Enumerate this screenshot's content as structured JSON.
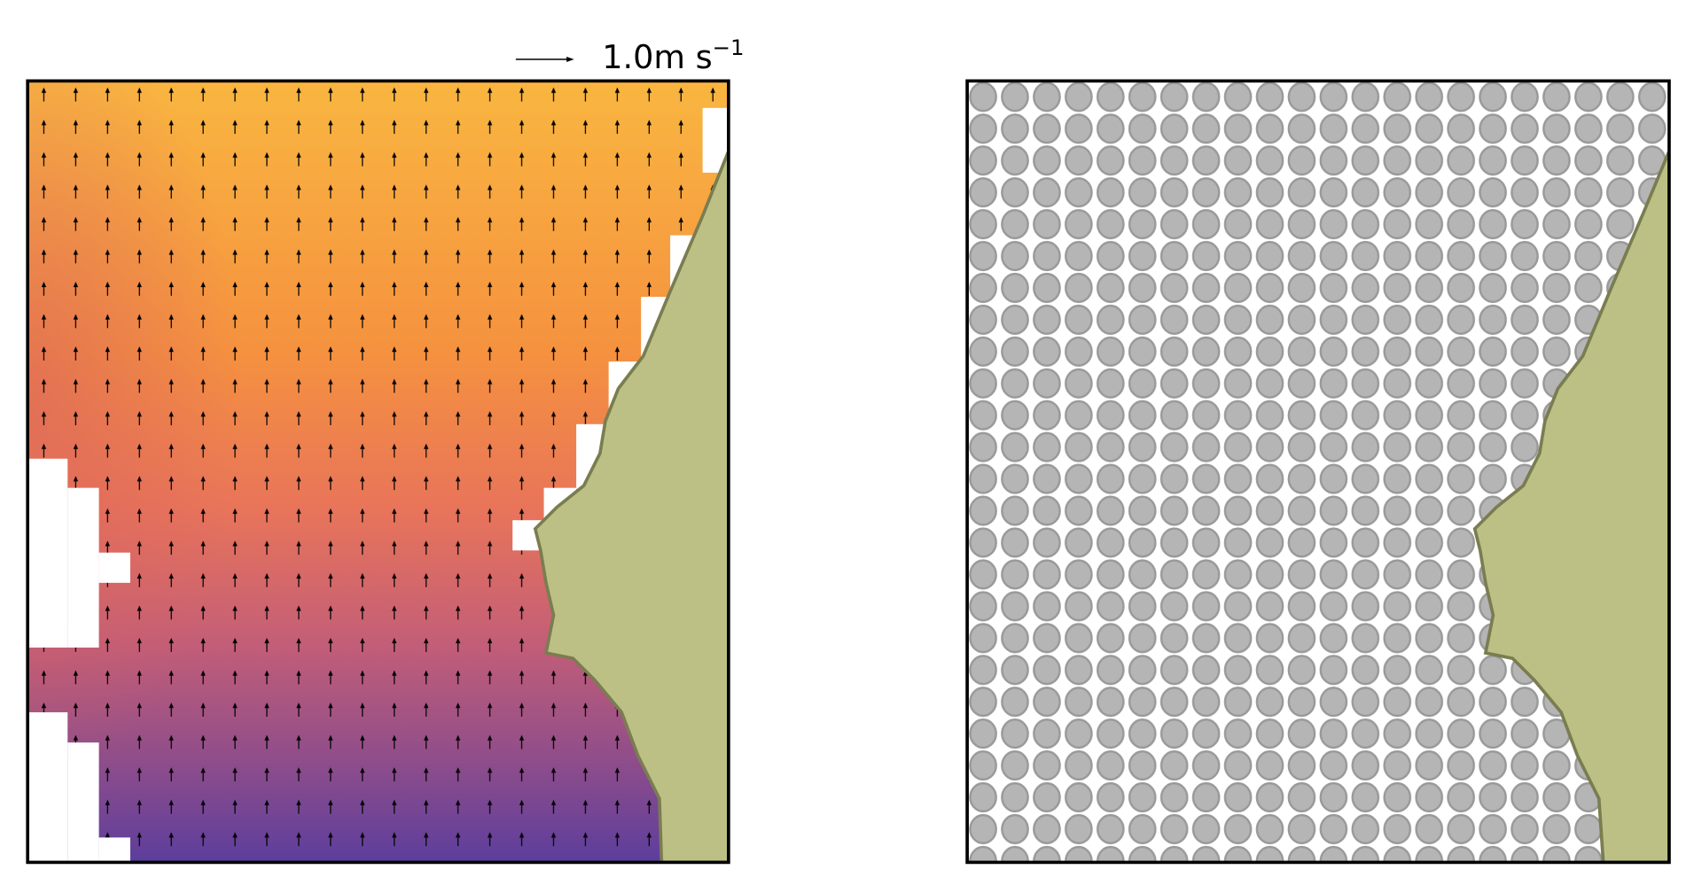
{
  "key": {
    "label": "1.0m s",
    "exponent": "−1"
  }
}
